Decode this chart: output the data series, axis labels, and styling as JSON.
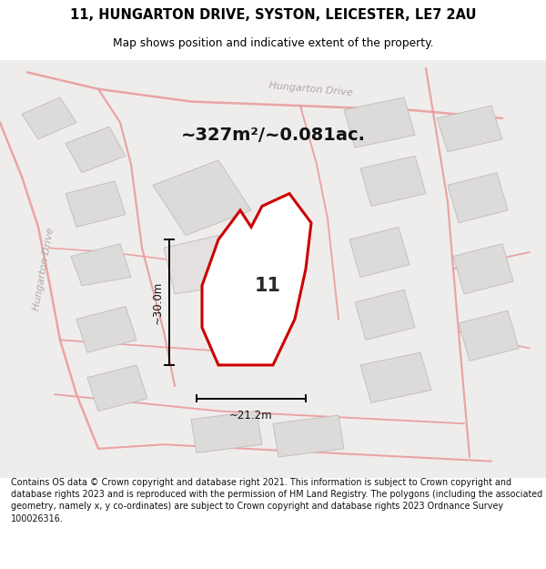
{
  "title_line1": "11, HUNGARTON DRIVE, SYSTON, LEICESTER, LE7 2AU",
  "title_line2": "Map shows position and indicative extent of the property.",
  "area_text": "~327m²/~0.081ac.",
  "property_number": "11",
  "dim_vertical": "~30.0m",
  "dim_horizontal": "~21.2m",
  "road_label_top": "Hungarton Drive",
  "road_label_left": "Hungarton Drive",
  "footer_text": "Contains OS data © Crown copyright and database right 2021. This information is subject to Crown copyright and database rights 2023 and is reproduced with the permission of HM Land Registry. The polygons (including the associated geometry, namely x, y co-ordinates) are subject to Crown copyright and database rights 2023 Ordnance Survey 100026316.",
  "bg_color": "#efedec",
  "highlight_color": "#cc0000",
  "title_color": "#000000",
  "footer_color": "#111111",
  "area_label_color": "#111111",
  "dim_color": "#111111",
  "road_line_color": "#e89898",
  "block_face": "#dddada",
  "block_edge": "#c4c0c0"
}
